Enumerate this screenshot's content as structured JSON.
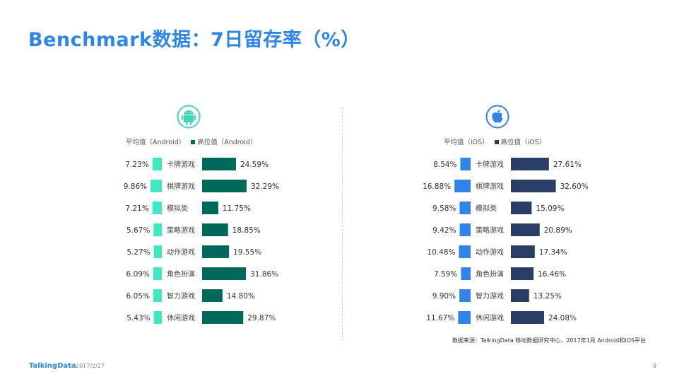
{
  "title": "Benchmark数据：7日留存率（%）",
  "colors": {
    "title": "#2f86e8",
    "android_avg": "#3fe8c0",
    "android_high": "#006a5a",
    "ios_avg": "#2f86e8",
    "ios_high": "#2a3d66",
    "android_icon": "#3fd7b6",
    "ios_icon": "#2f86e8"
  },
  "legends": {
    "android_avg": "平均值（Android）",
    "android_high": "高位值（Android）",
    "ios_avg": "平均值（iOS）",
    "ios_high": "高位值（iOS）"
  },
  "icons": {
    "android": "android-icon",
    "ios": "apple-icon"
  },
  "chart_data": [
    {
      "type": "bar",
      "platform": "Android",
      "categories": [
        "卡牌游戏",
        "棋牌游戏",
        "模拟类",
        "策略游戏",
        "动作游戏",
        "角色扮演",
        "智力游戏",
        "休闲游戏"
      ],
      "series": [
        {
          "name": "平均值（Android）",
          "values": [
            7.23,
            9.86,
            7.21,
            5.67,
            5.27,
            6.09,
            6.05,
            5.43
          ]
        },
        {
          "name": "高位值（Android）",
          "values": [
            24.59,
            32.29,
            11.75,
            18.85,
            19.55,
            31.86,
            14.8,
            29.87
          ]
        }
      ],
      "labels_avg": [
        "7.23%",
        "9.86%",
        "7.21%",
        "5.67%",
        "5.27%",
        "6.09%",
        "6.05%",
        "5.43%"
      ],
      "labels_high": [
        "24.59%",
        "32.29%",
        "11.75%",
        "18.85%",
        "19.55%",
        "31.86%",
        "14.80%",
        "29.87%"
      ]
    },
    {
      "type": "bar",
      "platform": "iOS",
      "categories": [
        "卡牌游戏",
        "棋牌游戏",
        "模拟类",
        "策略游戏",
        "动作游戏",
        "角色扮演",
        "智力游戏",
        "休闲游戏"
      ],
      "series": [
        {
          "name": "平均值（iOS）",
          "values": [
            8.54,
            16.88,
            9.58,
            9.42,
            10.48,
            7.59,
            9.9,
            11.67
          ]
        },
        {
          "name": "高位值（iOS）",
          "values": [
            27.61,
            32.6,
            15.09,
            20.89,
            17.34,
            16.46,
            13.25,
            24.08
          ]
        }
      ],
      "labels_avg": [
        "8.54%",
        "16.88%",
        "9.58%",
        "9.42%",
        "10.48%",
        "7.59%",
        "9.90%",
        "11.67%"
      ],
      "labels_high": [
        "27.61%",
        "32.60%",
        "15.09%",
        "20.89%",
        "17.34%",
        "16.46%",
        "13.25%",
        "24.08%"
      ]
    }
  ],
  "source": "数据来源：TalkingData 移动数据研究中心，2017年1月 Android和IOS平台",
  "footer": {
    "logo": "TalkingData",
    "date": "2017/2/27",
    "page": "9"
  }
}
